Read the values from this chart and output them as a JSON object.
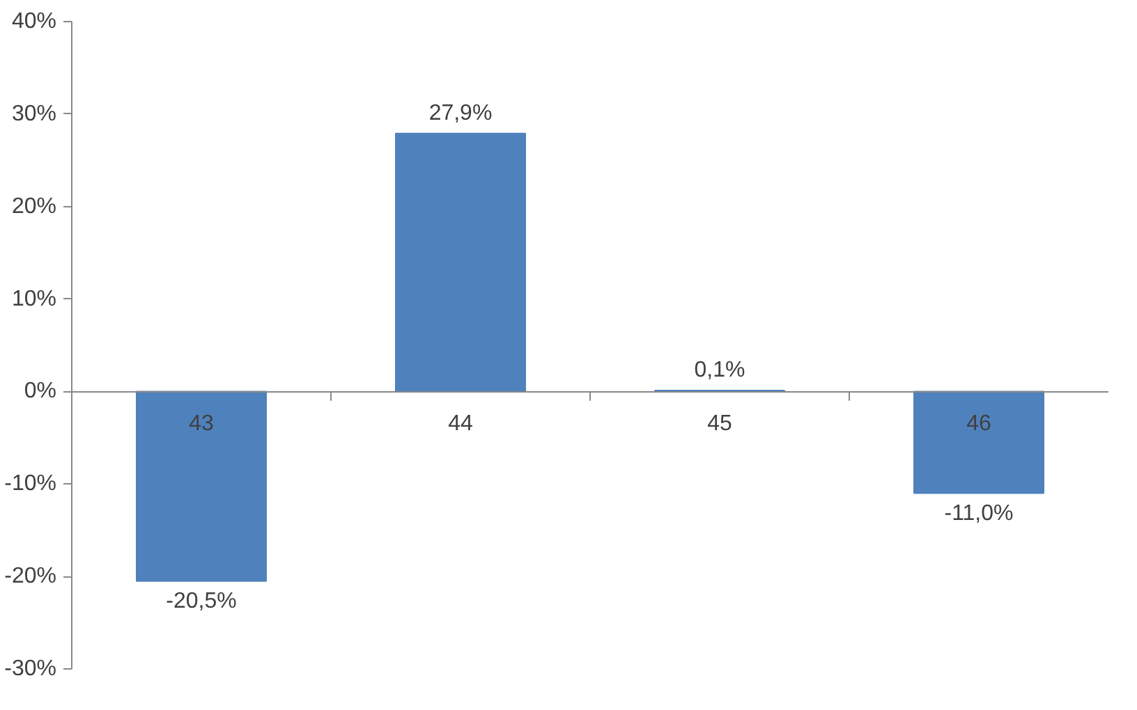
{
  "chart_data": {
    "type": "bar",
    "categories": [
      "43",
      "44",
      "45",
      "46"
    ],
    "values": [
      -20.5,
      27.9,
      0.1,
      -11.0
    ],
    "color": "#4f81bd",
    "value_labels": [
      "-20,5%",
      "27,9%",
      "0,1%",
      "-11,0%"
    ],
    "ylim": [
      -30,
      40
    ],
    "yticks": [
      {
        "value": -30,
        "label": "-30%"
      },
      {
        "value": -20,
        "label": "-20%"
      },
      {
        "value": -10,
        "label": "-10%"
      },
      {
        "value": 0,
        "label": "0%"
      },
      {
        "value": 10,
        "label": "10%"
      },
      {
        "value": 20,
        "label": "20%"
      },
      {
        "value": 30,
        "label": "30%"
      },
      {
        "value": 40,
        "label": "40%"
      }
    ],
    "grid": false
  }
}
